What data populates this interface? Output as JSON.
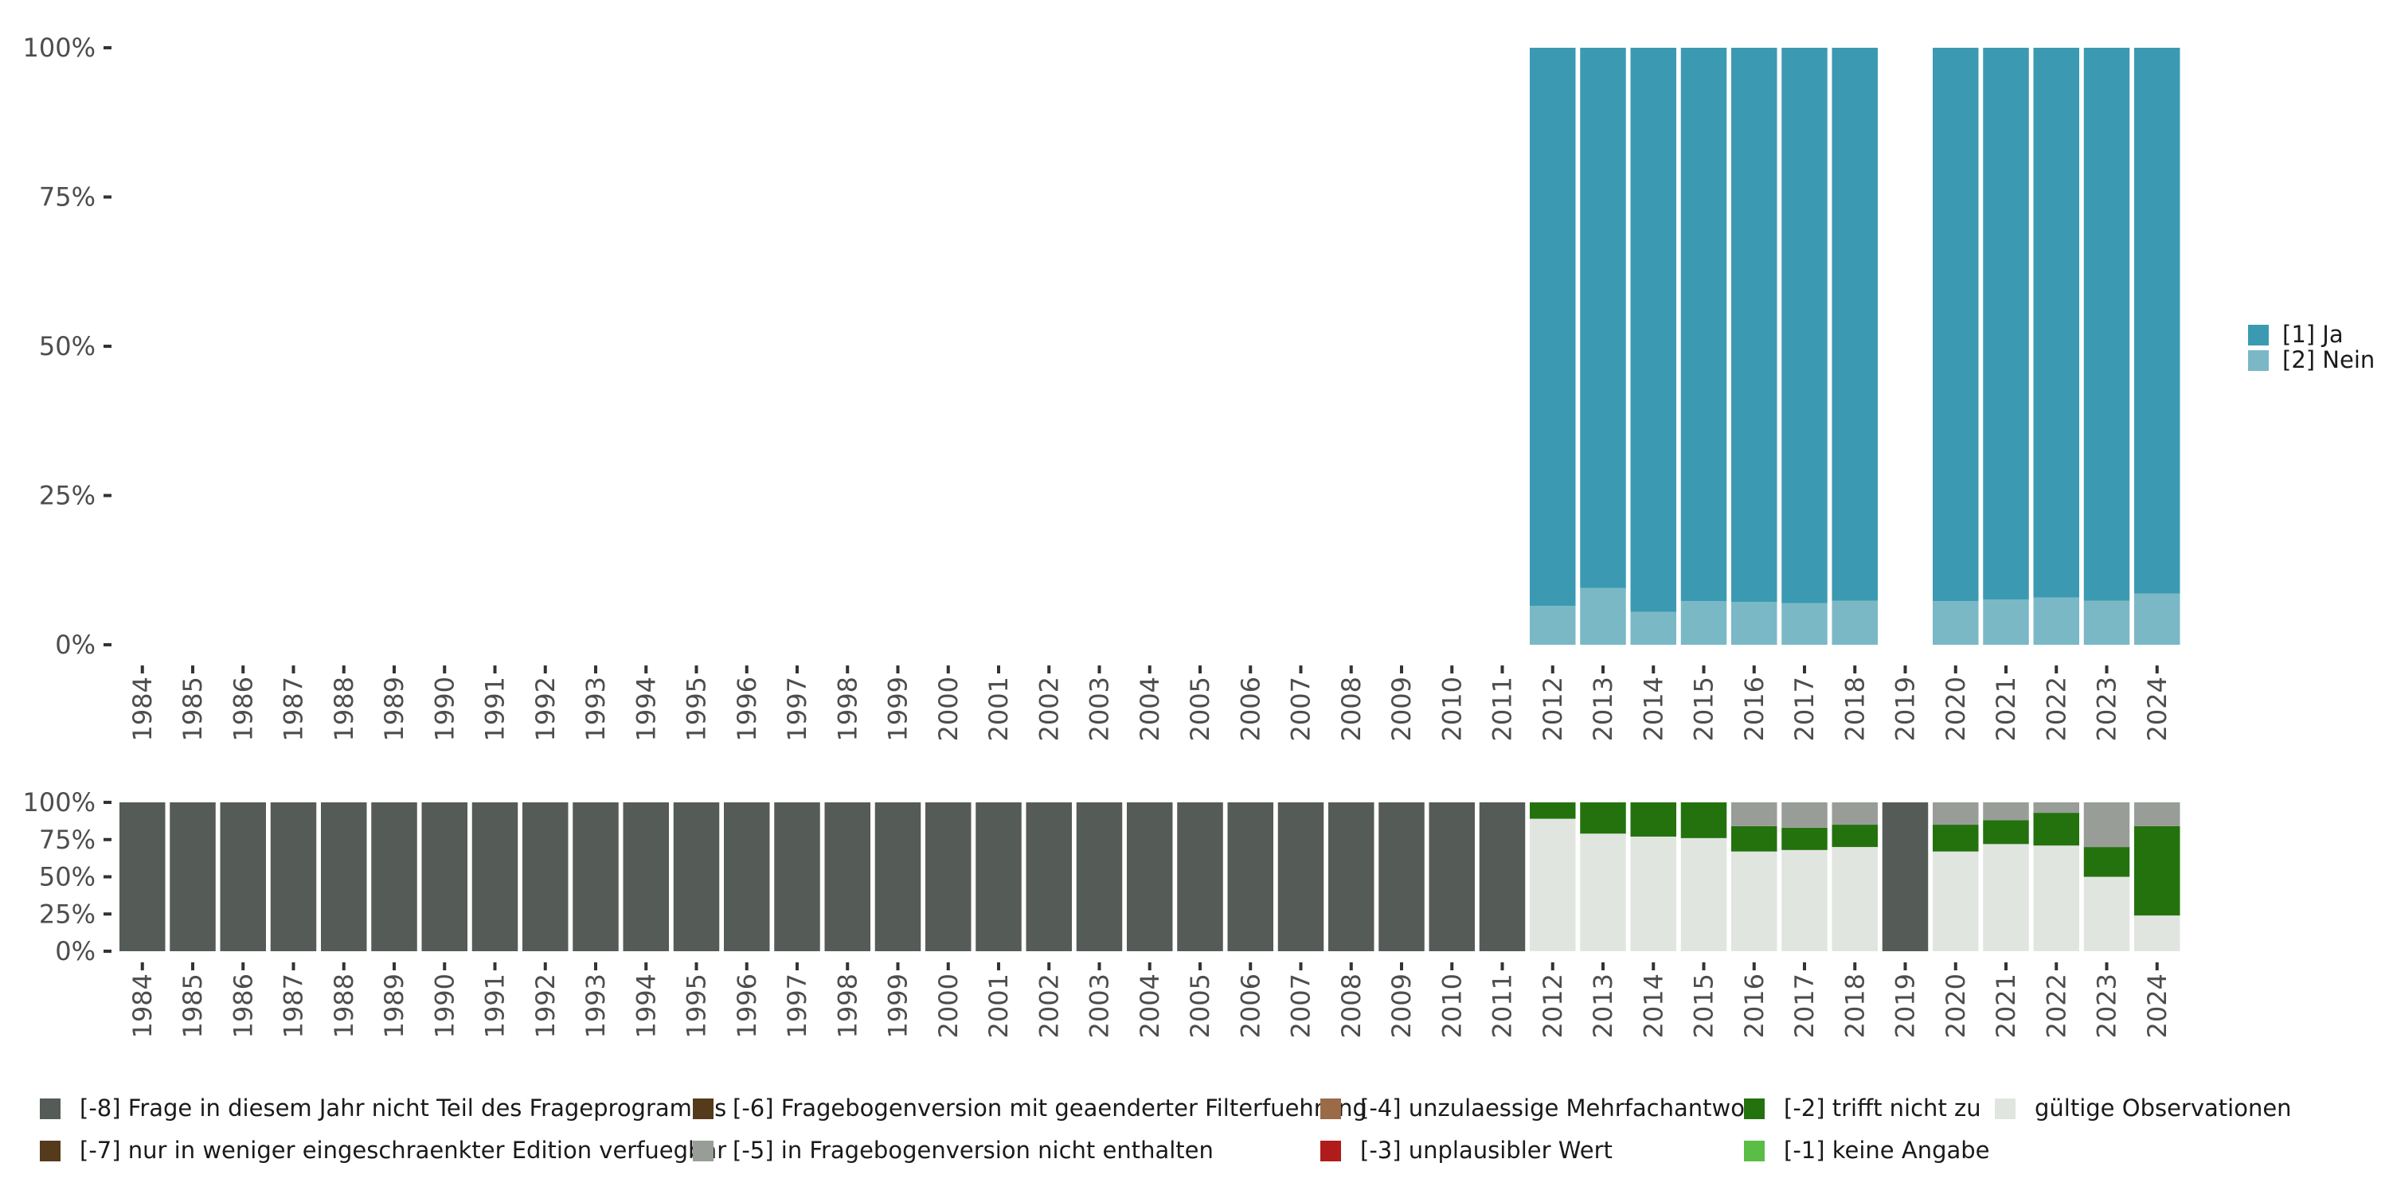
{
  "chart_data": [
    {
      "type": "bar",
      "stacked": true,
      "categories": [
        "1984",
        "1985",
        "1986",
        "1987",
        "1988",
        "1989",
        "1990",
        "1991",
        "1992",
        "1993",
        "1994",
        "1995",
        "1996",
        "1997",
        "1998",
        "1999",
        "2000",
        "2001",
        "2002",
        "2003",
        "2004",
        "2005",
        "2006",
        "2007",
        "2008",
        "2009",
        "2010",
        "2011",
        "2012",
        "2013",
        "2014",
        "2015",
        "2016",
        "2017",
        "2018",
        "2019",
        "2020",
        "2021",
        "2022",
        "2023",
        "2024"
      ],
      "y_ticks": [
        "0%",
        "25%",
        "50%",
        "75%",
        "100%"
      ],
      "ylim": [
        0,
        100
      ],
      "grid": false,
      "legend_position": "right",
      "series": [
        {
          "name": "[2] Nein",
          "color": "#7ab8c6",
          "values": [
            null,
            null,
            null,
            null,
            null,
            null,
            null,
            null,
            null,
            null,
            null,
            null,
            null,
            null,
            null,
            null,
            null,
            null,
            null,
            null,
            null,
            null,
            null,
            null,
            null,
            null,
            null,
            null,
            6.5,
            9.5,
            5.5,
            7.3,
            7.2,
            7.0,
            7.4,
            null,
            7.3,
            7.6,
            7.9,
            7.4,
            8.6
          ]
        },
        {
          "name": "[1] Ja",
          "color": "#3b9ab2",
          "values": [
            null,
            null,
            null,
            null,
            null,
            null,
            null,
            null,
            null,
            null,
            null,
            null,
            null,
            null,
            null,
            null,
            null,
            null,
            null,
            null,
            null,
            null,
            null,
            null,
            null,
            null,
            null,
            null,
            93.5,
            90.5,
            94.5,
            92.7,
            92.8,
            93.0,
            92.6,
            null,
            92.7,
            92.4,
            92.1,
            92.6,
            91.4
          ]
        }
      ]
    },
    {
      "type": "bar",
      "stacked": true,
      "categories": [
        "1984",
        "1985",
        "1986",
        "1987",
        "1988",
        "1989",
        "1990",
        "1991",
        "1992",
        "1993",
        "1994",
        "1995",
        "1996",
        "1997",
        "1998",
        "1999",
        "2000",
        "2001",
        "2002",
        "2003",
        "2004",
        "2005",
        "2006",
        "2007",
        "2008",
        "2009",
        "2010",
        "2011",
        "2012",
        "2013",
        "2014",
        "2015",
        "2016",
        "2017",
        "2018",
        "2019",
        "2020",
        "2021",
        "2022",
        "2023",
        "2024"
      ],
      "y_ticks": [
        "0%",
        "25%",
        "50%",
        "75%",
        "100%"
      ],
      "ylim": [
        0,
        100
      ],
      "grid": false,
      "legend_position": "bottom",
      "series": [
        {
          "name": "gültige Observationen",
          "color": "#e1e5e0",
          "values": [
            0,
            0,
            0,
            0,
            0,
            0,
            0,
            0,
            0,
            0,
            0,
            0,
            0,
            0,
            0,
            0,
            0,
            0,
            0,
            0,
            0,
            0,
            0,
            0,
            0,
            0,
            0,
            0,
            89,
            79,
            77,
            76,
            67,
            68,
            70,
            0,
            67,
            72,
            71,
            50,
            24
          ]
        },
        {
          "name": "[-2] trifft nicht zu",
          "color": "#24720e",
          "values": [
            0,
            0,
            0,
            0,
            0,
            0,
            0,
            0,
            0,
            0,
            0,
            0,
            0,
            0,
            0,
            0,
            0,
            0,
            0,
            0,
            0,
            0,
            0,
            0,
            0,
            0,
            0,
            0,
            11,
            21,
            23,
            24,
            17,
            15,
            15,
            0,
            18,
            16,
            22,
            20,
            60
          ]
        },
        {
          "name": "[-5] in Fragebogenversion nicht enthalten",
          "color": "#989e97",
          "values": [
            0,
            0,
            0,
            0,
            0,
            0,
            0,
            0,
            0,
            0,
            0,
            0,
            0,
            0,
            0,
            0,
            0,
            0,
            0,
            0,
            0,
            0,
            0,
            0,
            0,
            0,
            0,
            0,
            0,
            0,
            0,
            0,
            16,
            17,
            15,
            0,
            15,
            12,
            7,
            30,
            16
          ]
        },
        {
          "name": "[-8] Frage in diesem Jahr nicht Teil des Frageprogramms",
          "color": "#555b56",
          "values": [
            100,
            100,
            100,
            100,
            100,
            100,
            100,
            100,
            100,
            100,
            100,
            100,
            100,
            100,
            100,
            100,
            100,
            100,
            100,
            100,
            100,
            100,
            100,
            100,
            100,
            100,
            100,
            100,
            0,
            0,
            0,
            0,
            0,
            0,
            0,
            100,
            0,
            0,
            0,
            0,
            0
          ]
        }
      ]
    }
  ],
  "legend_bottom": [
    {
      "label": "[-8] Frage in diesem Jahr nicht Teil des Frageprogramms",
      "color": "#555b56"
    },
    {
      "label": "[-7] nur in weniger eingeschraenkter Edition verfuegbar",
      "color": "#553a1c"
    },
    {
      "label": "[-6] Fragebogenversion mit geaenderter Filterfuehrung",
      "color": "#553a1c"
    },
    {
      "label": "[-5] in Fragebogenversion nicht enthalten",
      "color": "#989e97"
    },
    {
      "label": "[-4] unzulaessige Mehrfachantwort",
      "color": "#9b6b48"
    },
    {
      "label": "[-3] unplausibler Wert",
      "color": "#b01c1c"
    },
    {
      "label": "[-2] trifft nicht zu",
      "color": "#24720e"
    },
    {
      "label": "[-1] keine Angabe",
      "color": "#5abd45"
    },
    {
      "label": "gültige Observationen",
      "color": "#e1e5e0"
    }
  ]
}
